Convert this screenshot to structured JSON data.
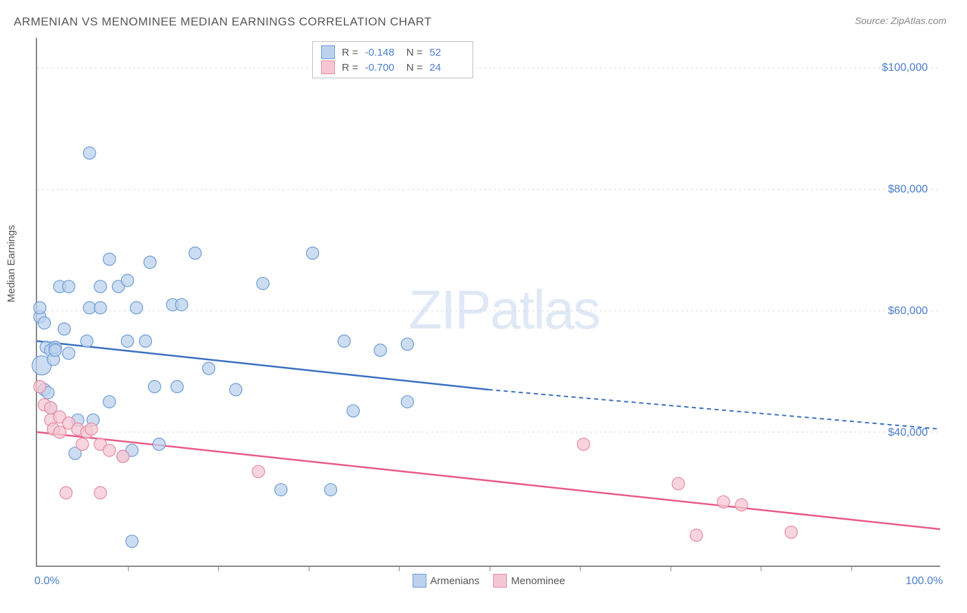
{
  "title": "ARMENIAN VS MENOMINEE MEDIAN EARNINGS CORRELATION CHART",
  "source": "Source: ZipAtlas.com",
  "ylabel": "Median Earnings",
  "watermark": {
    "bold": "ZIP",
    "rest": "atlas"
  },
  "chart": {
    "type": "scatter",
    "xlim": [
      0,
      100
    ],
    "ylim": [
      18000,
      105000
    ],
    "x_axis_label_left": "0.0%",
    "x_axis_label_right": "100.0%",
    "xtick_positions_pct": [
      10,
      20,
      30,
      40,
      50,
      60,
      70,
      80,
      90
    ],
    "ytick_labels": [
      "$40,000",
      "$60,000",
      "$80,000",
      "$100,000"
    ],
    "ytick_values": [
      40000,
      60000,
      80000,
      100000
    ],
    "grid_color": "#d8d8d8",
    "background_color": "#ffffff",
    "axis_color": "#888888",
    "tick_label_color": "#4a7ecc"
  },
  "series": [
    {
      "name": "Armenians",
      "marker_fill": "#bcd2ec",
      "marker_stroke": "#6a9bd8",
      "line_color": "#3a6fc0",
      "marker_radius": 9,
      "opacity": 0.75,
      "stats": {
        "R": "-0.148",
        "N": "52"
      },
      "trend": {
        "x0": 0,
        "y0": 55000,
        "x_solid_end": 50,
        "y_solid_end": 47000,
        "x1": 100,
        "y1": 40500
      },
      "points": [
        [
          0.3,
          59000
        ],
        [
          0.3,
          60500
        ],
        [
          0.5,
          51000,
          14
        ],
        [
          0.8,
          58000
        ],
        [
          0.8,
          47000
        ],
        [
          1.0,
          54000
        ],
        [
          1.2,
          46500
        ],
        [
          1.5,
          53500
        ],
        [
          1.8,
          52000
        ],
        [
          2.0,
          54000
        ],
        [
          1.5,
          44000
        ],
        [
          2.0,
          53500
        ],
        [
          2.5,
          64000
        ],
        [
          3.0,
          57000
        ],
        [
          3.5,
          53000
        ],
        [
          3.5,
          64000
        ],
        [
          4.5,
          42000
        ],
        [
          4.2,
          36500
        ],
        [
          5.5,
          55000
        ],
        [
          5.8,
          60500
        ],
        [
          5.8,
          86000
        ],
        [
          6.2,
          42000
        ],
        [
          7.0,
          64000
        ],
        [
          7.0,
          60500
        ],
        [
          8.0,
          68500
        ],
        [
          8.0,
          45000
        ],
        [
          9.0,
          64000
        ],
        [
          9.5,
          36000
        ],
        [
          10.0,
          65000
        ],
        [
          10.0,
          55000
        ],
        [
          10.5,
          22000
        ],
        [
          10.5,
          37000
        ],
        [
          11.0,
          60500
        ],
        [
          12.0,
          55000
        ],
        [
          12.5,
          68000
        ],
        [
          13.0,
          47500
        ],
        [
          13.5,
          38000
        ],
        [
          15.0,
          61000
        ],
        [
          15.5,
          47500
        ],
        [
          16.0,
          61000
        ],
        [
          17.5,
          69500
        ],
        [
          19.0,
          50500
        ],
        [
          22.0,
          47000
        ],
        [
          25.0,
          64500
        ],
        [
          27.0,
          30500
        ],
        [
          30.5,
          69500
        ],
        [
          32.5,
          30500
        ],
        [
          34.0,
          55000
        ],
        [
          35.0,
          43500
        ],
        [
          38.0,
          53500
        ],
        [
          41.0,
          45000
        ],
        [
          41.0,
          54500
        ]
      ]
    },
    {
      "name": "Menominee",
      "marker_fill": "#f5c7d3",
      "marker_stroke": "#e68aa2",
      "line_color": "#e85a87",
      "marker_radius": 9,
      "opacity": 0.75,
      "stats": {
        "R": "-0.700",
        "N": "24"
      },
      "trend": {
        "x0": 0,
        "y0": 40000,
        "x_solid_end": 100,
        "y_solid_end": 24000,
        "x1": 100,
        "y1": 24000
      },
      "points": [
        [
          0.3,
          47500
        ],
        [
          0.8,
          44500
        ],
        [
          1.5,
          42000
        ],
        [
          1.5,
          44000
        ],
        [
          1.8,
          40500
        ],
        [
          2.5,
          40000
        ],
        [
          2.5,
          42500
        ],
        [
          3.2,
          30000
        ],
        [
          3.5,
          41500
        ],
        [
          4.5,
          40500
        ],
        [
          5.0,
          38000
        ],
        [
          5.5,
          40000
        ],
        [
          6.0,
          40500
        ],
        [
          7.0,
          30000
        ],
        [
          7.0,
          38000
        ],
        [
          8.0,
          37000
        ],
        [
          9.5,
          36000
        ],
        [
          24.5,
          33500
        ],
        [
          60.5,
          38000
        ],
        [
          71.0,
          31500
        ],
        [
          73.0,
          23000
        ],
        [
          76.0,
          28500
        ],
        [
          78.0,
          28000
        ],
        [
          83.5,
          23500
        ]
      ]
    }
  ],
  "stats_box": {
    "label_R": "R =",
    "label_N": "N ="
  },
  "legend": {
    "series1": "Armenians",
    "series2": "Menominee"
  }
}
